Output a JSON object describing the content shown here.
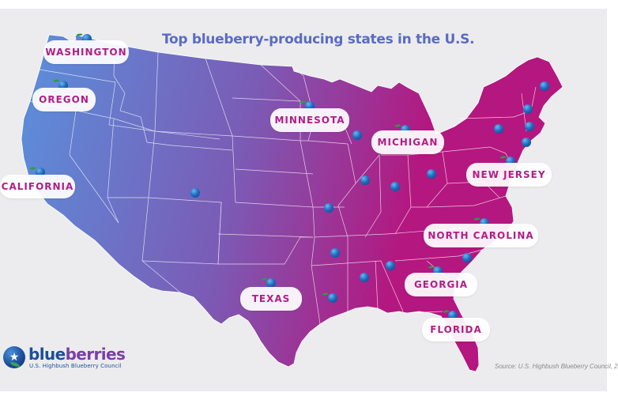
{
  "title": "Top blueberry-producing states in the U.S.",
  "colors": {
    "west": "#5a90dc",
    "mid": "#7b5bb5",
    "east": "#b4177f",
    "label_text": "#b01e86",
    "title": "#5a6bc4"
  },
  "labeled_states": [
    {
      "id": "washington",
      "label": "WASHINGTON"
    },
    {
      "id": "oregon",
      "label": "OREGON"
    },
    {
      "id": "california",
      "label": "CALIFORNIA"
    },
    {
      "id": "minnesota",
      "label": "MINNESOTA"
    },
    {
      "id": "michigan",
      "label": "MICHIGAN"
    },
    {
      "id": "new-jersey",
      "label": "NEW JERSEY"
    },
    {
      "id": "north-carolina",
      "label": "NORTH CAROLINA"
    },
    {
      "id": "texas",
      "label": "TEXAS"
    },
    {
      "id": "georgia",
      "label": "GEORGIA"
    },
    {
      "id": "florida",
      "label": "FLORIDA"
    }
  ],
  "marker_icon": "blueberry-icon",
  "logo": {
    "brand_part1": "blue",
    "brand_part2": "berries",
    "subtitle": "U.S. Highbush Blueberry Council",
    "icon": "blueberry-star-icon"
  },
  "source": "Source: U.S. Highbush Blueberry Council, 2"
}
